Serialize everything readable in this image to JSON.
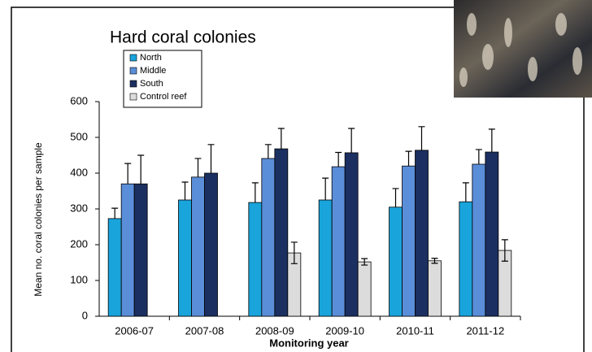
{
  "chart_data": {
    "type": "bar",
    "title": "Hard coral colonies",
    "x_label": "Monitoring year",
    "y_label": "Mean no. coral colonies per sample",
    "categories": [
      "2006-07",
      "2007-08",
      "2008-09",
      "2009-10",
      "2010-11",
      "2011-12"
    ],
    "series": [
      {
        "name": "North",
        "color": "#19a4dc",
        "values": [
          273,
          325,
          318,
          325,
          305,
          320
        ],
        "errors": [
          29,
          50,
          55,
          61,
          52,
          53
        ]
      },
      {
        "name": "Middle",
        "color": "#5b8ed8",
        "values": [
          370,
          389,
          441,
          418,
          420,
          425
        ],
        "errors": [
          57,
          52,
          39,
          40,
          41,
          41
        ]
      },
      {
        "name": "South",
        "color": "#1b2f60",
        "values": [
          370,
          400,
          468,
          457,
          464,
          459
        ],
        "errors": [
          80,
          80,
          57,
          68,
          66,
          64
        ]
      },
      {
        "name": "Control reef",
        "color": "#dcdcdc",
        "values": [
          null,
          null,
          177,
          152,
          155,
          184
        ],
        "errors": [
          null,
          null,
          30,
          9,
          7,
          30
        ]
      }
    ],
    "ylim": [
      0,
      600
    ],
    "yticks": [
      0,
      100,
      200,
      300,
      400,
      500,
      600
    ],
    "grid": false
  }
}
